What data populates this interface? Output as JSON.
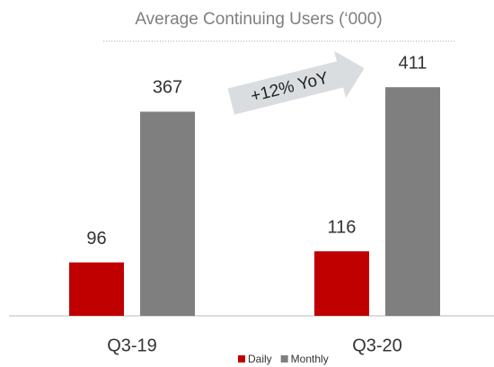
{
  "chart_data": {
    "type": "bar",
    "title": "Average Continuing Users (‘000)",
    "categories": [
      "Q3-19",
      "Q3-20"
    ],
    "series": [
      {
        "name": "Daily",
        "color": "#c00000",
        "values": [
          96,
          116
        ]
      },
      {
        "name": "Monthly",
        "color": "#7f7f7f",
        "values": [
          367,
          411
        ]
      }
    ],
    "annotation": "+12% YoY"
  }
}
